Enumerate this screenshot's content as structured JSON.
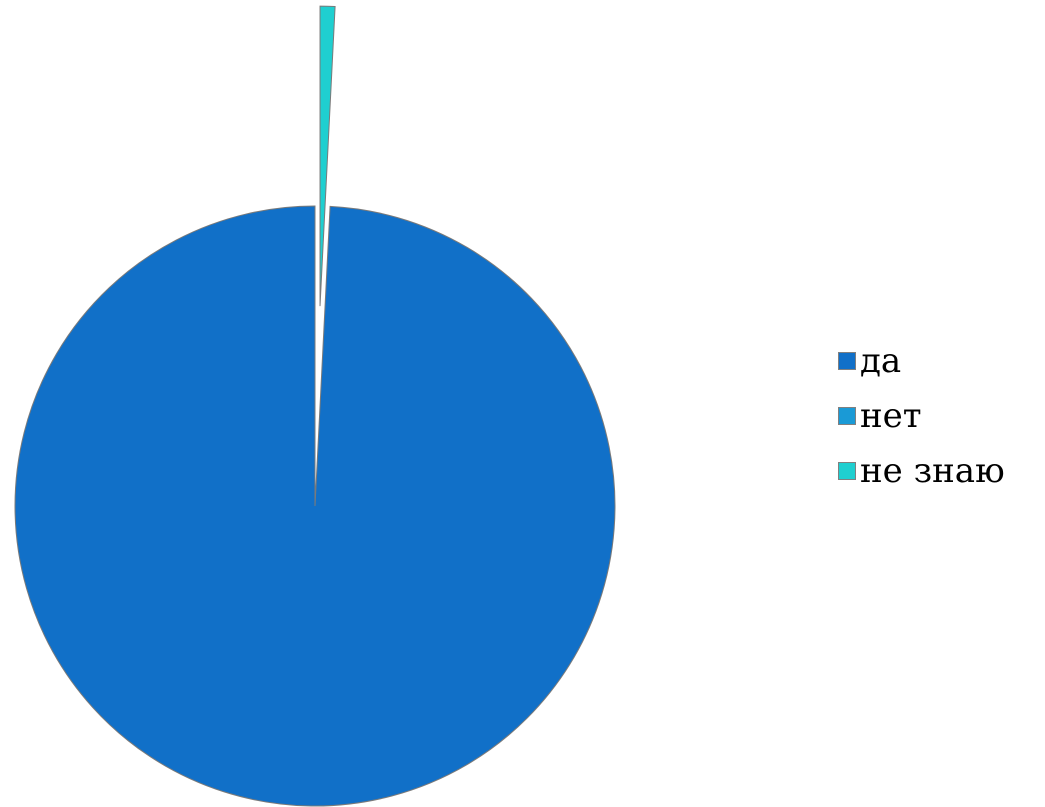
{
  "chart_data": {
    "type": "pie",
    "categories": [
      "да",
      "нет",
      "не знаю"
    ],
    "values": [
      99.2,
      0.0,
      0.8
    ],
    "colors": [
      "#1170c8",
      "#1a9ad6",
      "#1fcfd0"
    ],
    "exploded": [
      false,
      false,
      true
    ],
    "legend_position": "right",
    "title": ""
  }
}
